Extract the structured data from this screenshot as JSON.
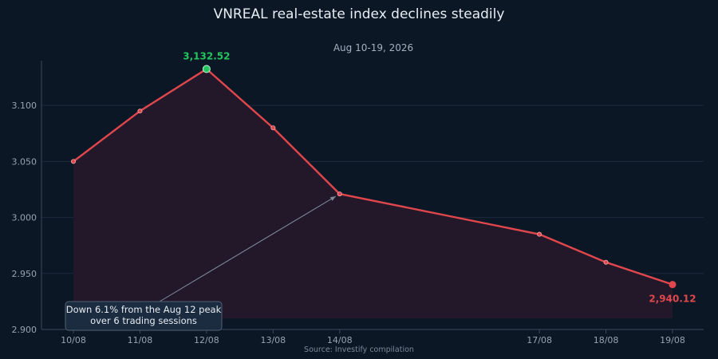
{
  "chart_data": {
    "type": "area",
    "title": "VNREAL real-estate index declines steadily",
    "subtitle": "Aug 10-19, 2026",
    "xlabel": "",
    "ylabel": "",
    "source": "Source: Investify compilation",
    "x": [
      "2026-08-10",
      "2026-08-11",
      "2026-08-12",
      "2026-08-13",
      "2026-08-14",
      "2026-08-17",
      "2026-08-18",
      "2026-08-19"
    ],
    "x_tick_labels": [
      "10/08",
      "11/08",
      "12/08",
      "13/08",
      "14/08",
      "17/08",
      "18/08",
      "19/08"
    ],
    "series": [
      {
        "values": [
          3050,
          3095,
          3132.52,
          3080,
          3021,
          2985,
          2960,
          2940.12
        ]
      }
    ],
    "ylim": [
      2900,
      3140
    ],
    "y_ticks": [
      2900,
      2950,
      3000,
      3050,
      3100
    ],
    "y_tick_labels": [
      "2.900",
      "2.950",
      "3.000",
      "3.050",
      "3.100"
    ],
    "grid": true,
    "line_color": "#e0474c",
    "peak_color": "#22c55e",
    "fill_color": "#24182a",
    "annotations": {
      "peak_label": "3,132.52",
      "last_label": "2,940.12",
      "callout": [
        "Down 6.1% from the Aug 12 peak",
        "over 6 trading sessions"
      ]
    }
  }
}
